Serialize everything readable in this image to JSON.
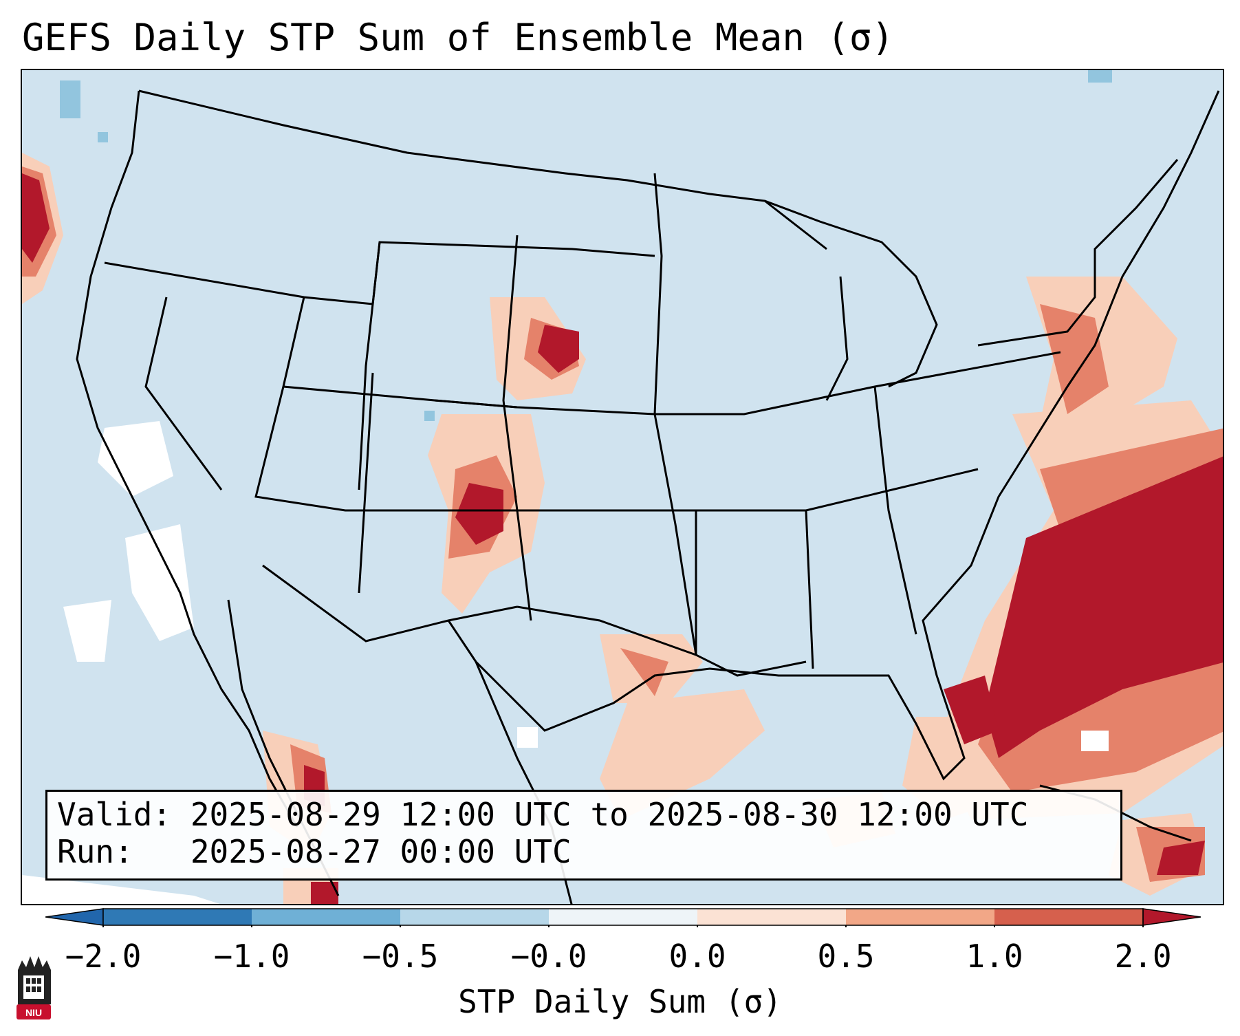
{
  "title": "GEFS Daily STP Sum of Ensemble Mean (σ)",
  "info": {
    "valid_line": "Valid: 2025-08-29 12:00 UTC to 2025-08-30 12:00 UTC",
    "run_line": "Run:   2025-08-27 00:00 UTC"
  },
  "colorbar": {
    "label": "STP Daily Sum (σ)",
    "ticks": [
      "−2.0",
      "−1.0",
      "−0.5",
      "−0.0",
      "0.0",
      "0.5",
      "1.0",
      "2.0"
    ],
    "colors": [
      "#2f79b5",
      "#6fb0d6",
      "#b7d7e9",
      "#eef4f8",
      "#fbe2d4",
      "#f2a787",
      "#d6604d",
      "#b2182b"
    ],
    "extend": "both"
  },
  "logo": {
    "text": "NIU"
  },
  "colors": {
    "background": "#d0e3ef",
    "light_red": "#f8cfb9",
    "medium_red": "#e5826a",
    "dark_red": "#b2182b",
    "light_blue": "#92c5de",
    "white_patches": "#ffffff"
  }
}
